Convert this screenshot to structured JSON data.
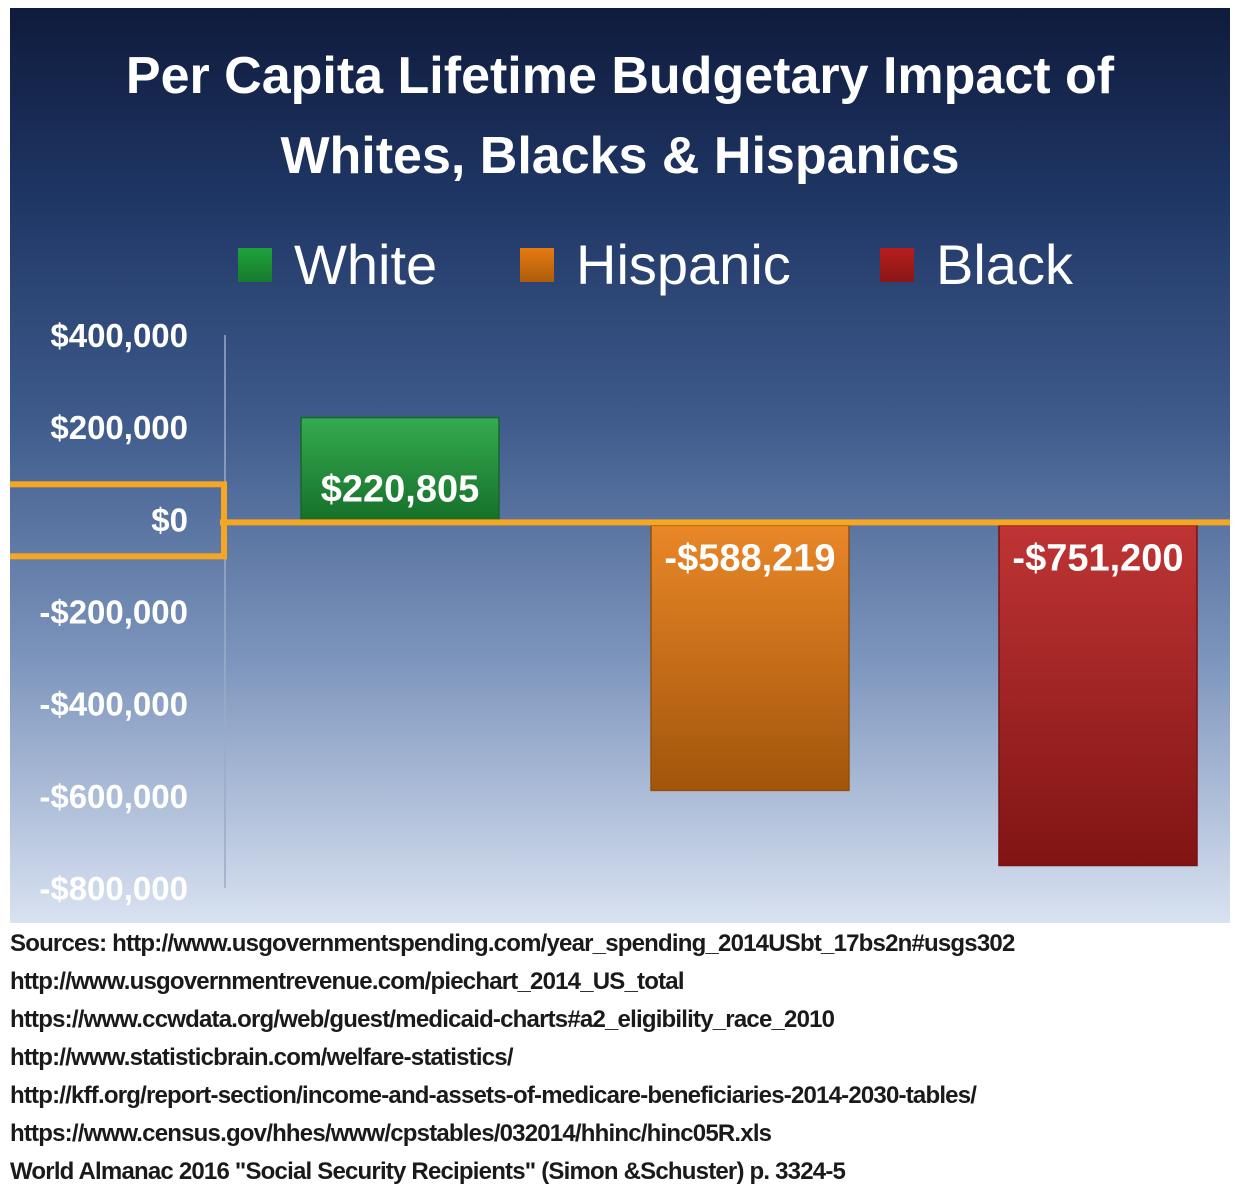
{
  "chart_data": {
    "type": "bar",
    "title": "Per Capita Lifetime Budgetary Impact of\nWhites, Blacks & Hispanics",
    "categories": [
      "White",
      "Hispanic",
      "Black"
    ],
    "values": [
      220805,
      -588219,
      -751200
    ],
    "data_labels": [
      "$220,805",
      "-$588,219",
      "-$751,200"
    ],
    "colors": [
      "#1fa23c",
      "#e77a10",
      "#b81d1d"
    ],
    "ylim": [
      -800000,
      400000
    ],
    "yticks": [
      400000,
      200000,
      0,
      -200000,
      -400000,
      -600000,
      -800000
    ],
    "ytick_labels": [
      "$400,000",
      "$200,000",
      "$0",
      "-$200,000",
      "-$400,000",
      "-$600,000",
      "-$800,000"
    ],
    "legend": {
      "placement": "top",
      "items": [
        {
          "label": "White",
          "color": "#1fa23c"
        },
        {
          "label": "Hispanic",
          "color": "#e77a10"
        },
        {
          "label": "Black",
          "color": "#b81d1d"
        }
      ]
    },
    "highlight": {
      "value": 0,
      "color": "#f5a623"
    },
    "grid": false
  },
  "sources": [
    "Sources: http://www.usgovernmentspending.com/year_spending_2014USbt_17bs2n#usgs302",
    "http://www.usgovernmentrevenue.com/piechart_2014_US_total",
    "https://www.ccwdata.org/web/guest/medicaid-charts#a2_eligibility_race_2010",
    "http://www.statisticbrain.com/welfare-statistics/",
    "http://kff.org/report-section/income-and-assets-of-medicare-beneficiaries-2014-2030-tables/",
    "https://www.census.gov/hhes/www/cpstables/032014/hhinc/hinc05R.xls",
    "World Almanac 2016 \"Social Security Recipients\" (Simon &Schuster) p. 3324-5"
  ]
}
